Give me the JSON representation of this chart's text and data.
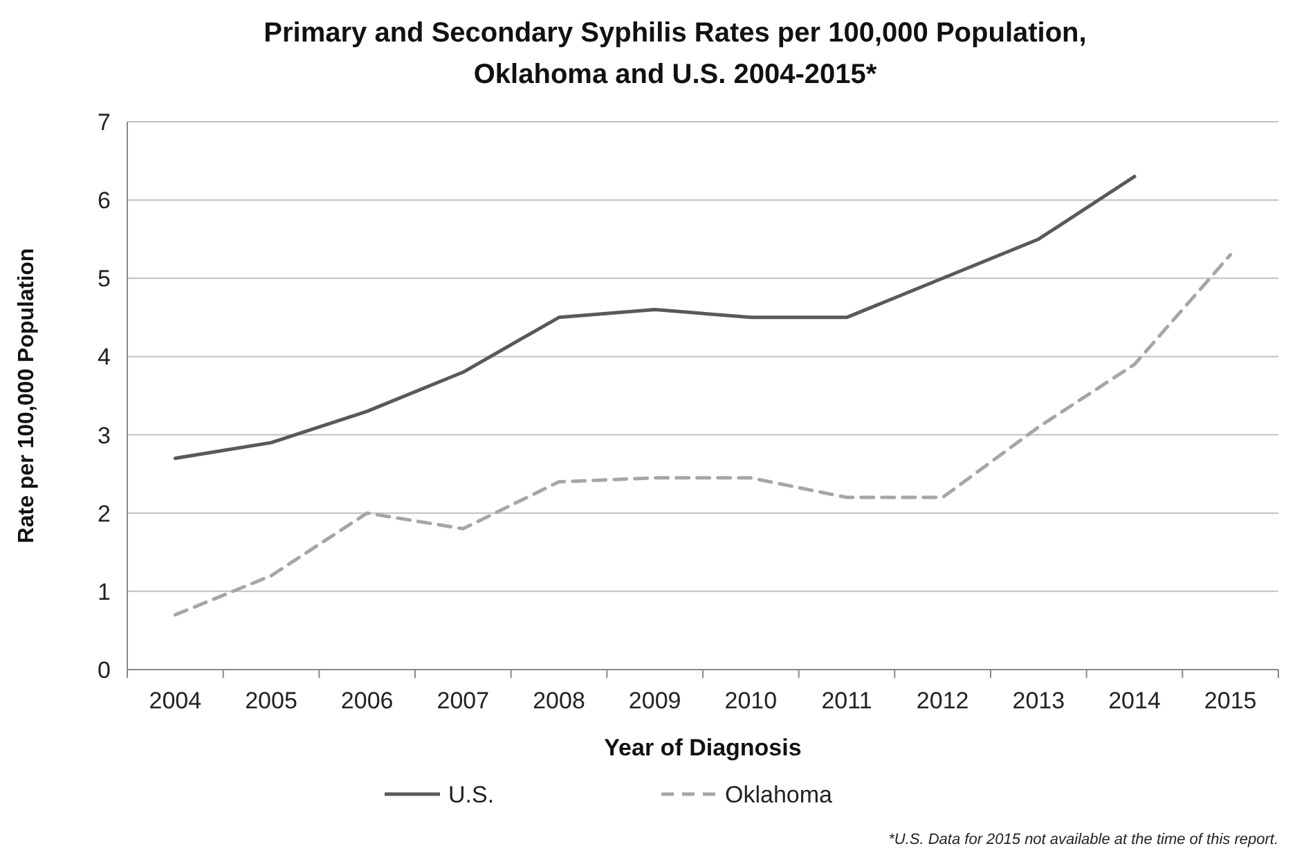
{
  "chart_data": {
    "type": "line",
    "title": "Primary and Secondary Syphilis Rates per 100,000 Population, Oklahoma and U.S. 2004-2015*",
    "xlabel": "Year of Diagnosis",
    "ylabel": "Rate per 100,000 Population",
    "categories": [
      "2004",
      "2005",
      "2006",
      "2007",
      "2008",
      "2009",
      "2010",
      "2011",
      "2012",
      "2013",
      "2014",
      "2015"
    ],
    "series": [
      {
        "name": "U.S.",
        "color": "#595959",
        "line_style": "solid",
        "values": [
          2.7,
          2.9,
          3.3,
          3.8,
          4.5,
          4.6,
          4.5,
          4.5,
          5.0,
          5.5,
          6.3,
          null
        ]
      },
      {
        "name": "Oklahoma",
        "color": "#a6a6a6",
        "line_style": "dashed",
        "values": [
          0.7,
          1.2,
          2.0,
          1.8,
          2.4,
          2.45,
          2.45,
          2.2,
          2.2,
          3.1,
          3.9,
          5.3
        ]
      }
    ],
    "ylim": [
      0,
      7
    ],
    "yticks": [
      0,
      1,
      2,
      3,
      4,
      5,
      6,
      7
    ],
    "grid": "y",
    "legend": "bottom",
    "annotations": [
      "*U.S. Data for 2015 not available at the time of this report."
    ]
  }
}
